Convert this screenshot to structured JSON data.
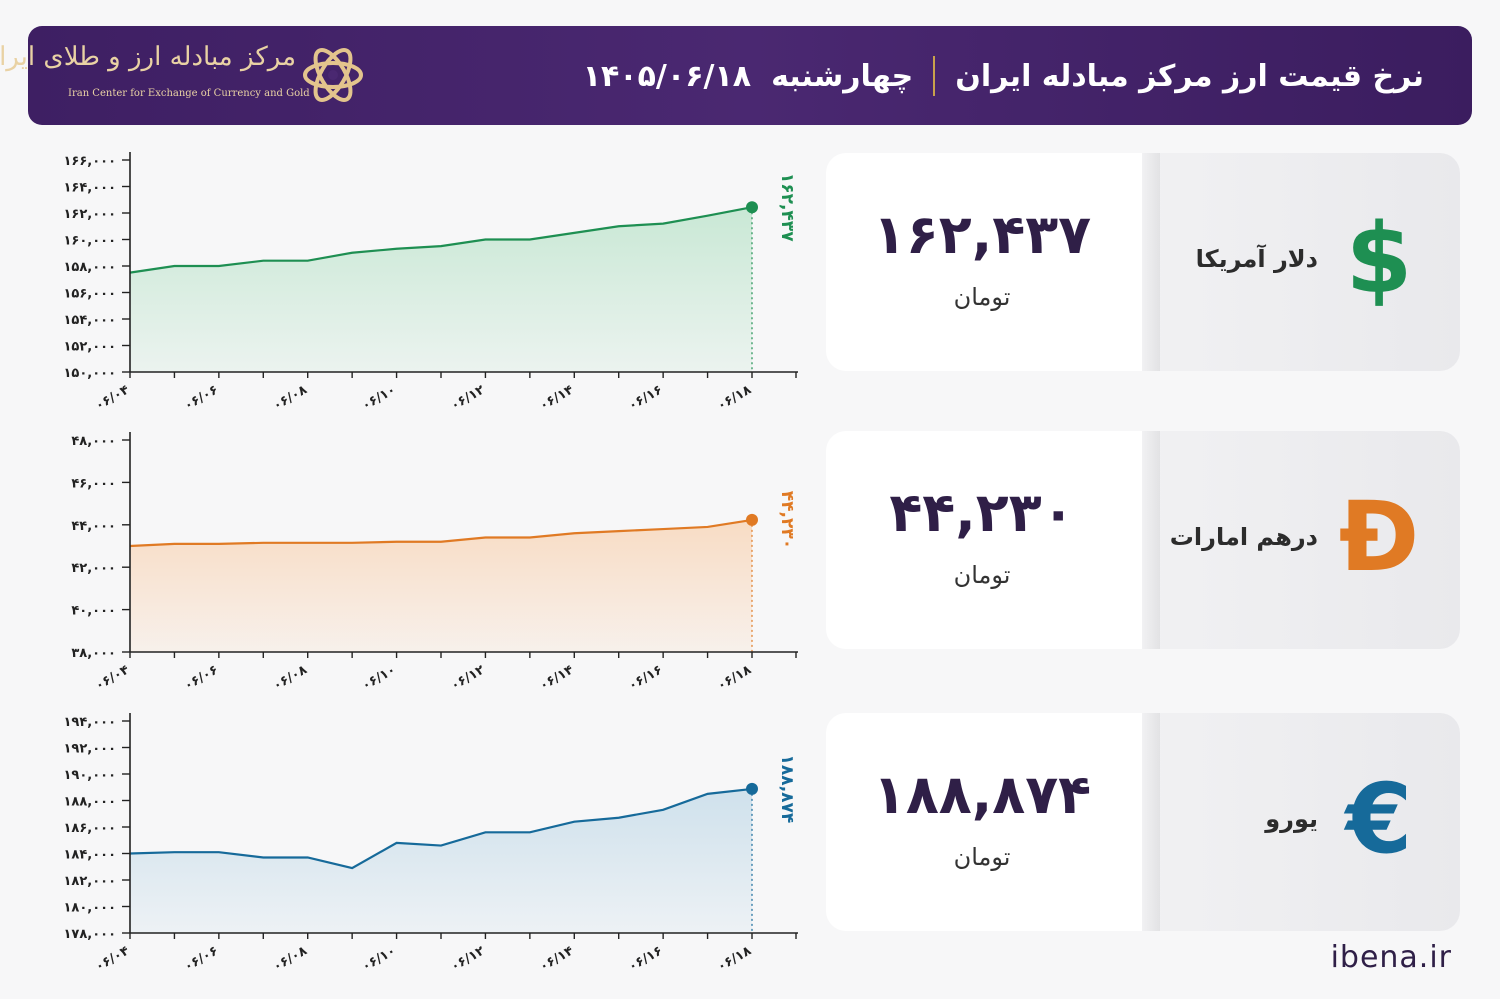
{
  "header": {
    "title": "نرخ قیمت ارز مرکز مبادله ایران",
    "day": "چهارشنبه",
    "date": "۱۴۰۵/۰۶/۱۸",
    "logo_text_fa": "مرکز مبادله ارز و طلای ایران",
    "logo_text_en": "Iran Center for Exchange of Currency and Gold"
  },
  "unit_label": "تومان",
  "footer": {
    "site": "ibena.ir"
  },
  "currencies": [
    {
      "name": "دلار آمریکا",
      "value": "۱۶۲,۴۳۷",
      "symbol": "$",
      "color": "#1e8f52"
    },
    {
      "name": "درهم امارات",
      "value": "۴۴,۲۳۰",
      "symbol": "Đ",
      "color": "#e07a24"
    },
    {
      "name": "یورو",
      "value": "۱۸۸,۸۷۴",
      "symbol": "€",
      "color": "#166a9a"
    }
  ],
  "chart_data": [
    {
      "type": "area",
      "x": [
        "06/04",
        "06/05",
        "06/06",
        "06/07",
        "06/08",
        "06/09",
        "06/10",
        "06/11",
        "06/12",
        "06/13",
        "06/14",
        "06/15",
        "06/16",
        "06/17",
        "06/18"
      ],
      "x_tick_labels": [
        "۰۶/۰۴",
        "۰۶/۰۶",
        "۰۶/۰۸",
        "۰۶/۱۰",
        "۰۶/۱۲",
        "۰۶/۱۴",
        "۰۶/۱۶",
        "۰۶/۱۸"
      ],
      "series": [
        {
          "values": [
            157500,
            158000,
            158000,
            158400,
            158400,
            159000,
            159300,
            159500,
            160000,
            160000,
            160500,
            161000,
            161200,
            161800,
            162437
          ]
        }
      ],
      "last_label": "۱۶۲,۴۳۷",
      "ylim": [
        150000,
        166000
      ],
      "y_ticks": [
        150000,
        152000,
        154000,
        156000,
        158000,
        160000,
        162000,
        164000,
        166000
      ],
      "y_tick_labels": [
        "۱۵۰,۰۰۰",
        "۱۵۲,۰۰۰",
        "۱۵۴,۰۰۰",
        "۱۵۶,۰۰۰",
        "۱۵۸,۰۰۰",
        "۱۶۰,۰۰۰",
        "۱۶۲,۰۰۰",
        "۱۶۴,۰۰۰",
        "۱۶۶,۰۰۰"
      ],
      "color": "#1e8f52",
      "fill": "#c9e8d5",
      "grid": false
    },
    {
      "type": "area",
      "x": [
        "06/04",
        "06/05",
        "06/06",
        "06/07",
        "06/08",
        "06/09",
        "06/10",
        "06/11",
        "06/12",
        "06/13",
        "06/14",
        "06/15",
        "06/16",
        "06/17",
        "06/18"
      ],
      "x_tick_labels": [
        "۰۶/۰۴",
        "۰۶/۰۶",
        "۰۶/۰۸",
        "۰۶/۱۰",
        "۰۶/۱۲",
        "۰۶/۱۴",
        "۰۶/۱۶",
        "۰۶/۱۸"
      ],
      "series": [
        {
          "values": [
            43000,
            43100,
            43100,
            43150,
            43150,
            43150,
            43200,
            43200,
            43400,
            43400,
            43600,
            43700,
            43800,
            43900,
            44230
          ]
        }
      ],
      "last_label": "۴۴,۲۳۰",
      "ylim": [
        38000,
        48000
      ],
      "y_ticks": [
        38000,
        40000,
        42000,
        44000,
        46000,
        48000
      ],
      "y_tick_labels": [
        "۳۸,۰۰۰",
        "۴۰,۰۰۰",
        "۴۲,۰۰۰",
        "۴۴,۰۰۰",
        "۴۶,۰۰۰",
        "۴۸,۰۰۰"
      ],
      "color": "#e07a24",
      "fill": "#f8dcc4",
      "grid": false
    },
    {
      "type": "area",
      "x": [
        "06/04",
        "06/05",
        "06/06",
        "06/07",
        "06/08",
        "06/09",
        "06/10",
        "06/11",
        "06/12",
        "06/13",
        "06/14",
        "06/15",
        "06/16",
        "06/17",
        "06/18"
      ],
      "x_tick_labels": [
        "۰۶/۰۴",
        "۰۶/۰۶",
        "۰۶/۰۸",
        "۰۶/۱۰",
        "۰۶/۱۲",
        "۰۶/۱۴",
        "۰۶/۱۶",
        "۰۶/۱۸"
      ],
      "series": [
        {
          "values": [
            184000,
            184100,
            184100,
            183700,
            183700,
            182900,
            184800,
            184600,
            185600,
            185600,
            186400,
            186700,
            187300,
            188500,
            188874
          ]
        }
      ],
      "last_label": "۱۸۸,۸۷۴",
      "ylim": [
        178000,
        194000
      ],
      "y_ticks": [
        178000,
        180000,
        182000,
        184000,
        186000,
        188000,
        190000,
        192000,
        194000
      ],
      "y_tick_labels": [
        "۱۷۸,۰۰۰",
        "۱۸۰,۰۰۰",
        "۱۸۲,۰۰۰",
        "۱۸۴,۰۰۰",
        "۱۸۶,۰۰۰",
        "۱۸۸,۰۰۰",
        "۱۹۰,۰۰۰",
        "۱۹۲,۰۰۰",
        "۱۹۴,۰۰۰"
      ],
      "color": "#166a9a",
      "fill": "#cfe1ec",
      "grid": false
    }
  ]
}
